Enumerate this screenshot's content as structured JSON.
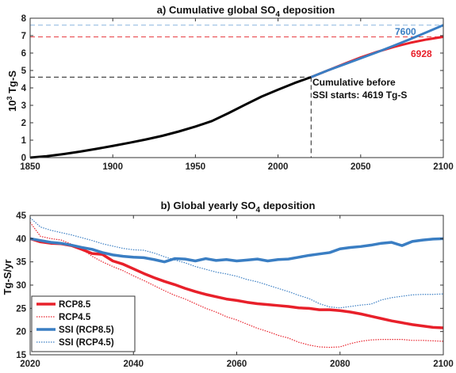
{
  "colors": {
    "black": "#000000",
    "red": "#e8202a",
    "blue": "#3a7ec3",
    "dash_red": "#e8383c",
    "dash_blue": "#8ab6e0",
    "axis": "#333333"
  },
  "chart_data": [
    {
      "type": "line",
      "title_prefix": "a) Cumulative global SO",
      "title_sub": "4",
      "title_suffix": " deposition",
      "ylabel": "10",
      "ylabel_sup": "3",
      "ylabel_suffix": " Tg-S",
      "xlim": [
        1850,
        2100
      ],
      "ylim": [
        0,
        8
      ],
      "x_ticks": [
        1850,
        1900,
        1950,
        2000,
        2050,
        2100
      ],
      "y_ticks": [
        0,
        1,
        2,
        3,
        4,
        5,
        6,
        7,
        8
      ],
      "grid": false,
      "annotation_line1": "Cumulative before",
      "annotation_line2": "SSI starts: 4619 Tg-S",
      "label_blue": "7600",
      "label_red": "6928",
      "reference_lines": [
        {
          "y": 7.6,
          "color": "blue",
          "style": "dashed"
        },
        {
          "y": 6.928,
          "color": "red",
          "style": "dashed"
        },
        {
          "y": 4.619,
          "x_end": 2020,
          "color": "black",
          "style": "dashed"
        }
      ],
      "reference_vline": {
        "x": 2020,
        "y_end": 4.619
      },
      "series": [
        {
          "color": "black",
          "x": [
            1850,
            1860,
            1870,
            1880,
            1890,
            1900,
            1910,
            1920,
            1930,
            1940,
            1950,
            1960,
            1970,
            1980,
            1990,
            2000,
            2010,
            2020
          ],
          "y": [
            0,
            0.08,
            0.2,
            0.34,
            0.5,
            0.67,
            0.85,
            1.04,
            1.25,
            1.5,
            1.78,
            2.1,
            2.55,
            3.03,
            3.5,
            3.9,
            4.28,
            4.619
          ]
        },
        {
          "color": "red",
          "x": [
            2020,
            2030,
            2040,
            2050,
            2060,
            2070,
            2080,
            2090,
            2100
          ],
          "y": [
            4.619,
            5.0,
            5.38,
            5.75,
            6.07,
            6.35,
            6.59,
            6.78,
            6.93
          ]
        },
        {
          "color": "blue",
          "x": [
            2020,
            2030,
            2040,
            2050,
            2060,
            2070,
            2080,
            2090,
            2100
          ],
          "y": [
            4.619,
            5.0,
            5.35,
            5.7,
            6.05,
            6.42,
            6.8,
            7.2,
            7.6
          ]
        }
      ]
    },
    {
      "type": "line",
      "title_prefix": "b) Global yearly SO",
      "title_sub": "4",
      "title_suffix": " deposition",
      "ylabel": "Tg-S/yr",
      "xlim": [
        2020,
        2100
      ],
      "ylim": [
        15,
        45
      ],
      "x_ticks": [
        2020,
        2040,
        2060,
        2080,
        2100
      ],
      "y_ticks": [
        15,
        20,
        25,
        30,
        35,
        40,
        45
      ],
      "grid": false,
      "legend_position": "bottom-left",
      "x": [
        2020,
        2022,
        2024,
        2026,
        2028,
        2030,
        2032,
        2034,
        2036,
        2038,
        2040,
        2042,
        2044,
        2046,
        2048,
        2050,
        2052,
        2054,
        2056,
        2058,
        2060,
        2062,
        2064,
        2066,
        2068,
        2070,
        2072,
        2074,
        2076,
        2078,
        2080,
        2082,
        2084,
        2086,
        2088,
        2090,
        2092,
        2094,
        2096,
        2098,
        2100
      ],
      "series": [
        {
          "name": "RCP8.5",
          "color": "red",
          "style": "solid-thick",
          "values": [
            40.0,
            39.3,
            39.0,
            38.9,
            38.5,
            37.7,
            36.8,
            36.6,
            35.2,
            34.5,
            33.5,
            32.5,
            31.6,
            30.8,
            30.1,
            29.3,
            28.6,
            28.0,
            27.5,
            27.0,
            26.7,
            26.3,
            26.0,
            25.8,
            25.6,
            25.4,
            25.1,
            25.0,
            24.7,
            24.7,
            24.5,
            24.2,
            23.8,
            23.3,
            22.8,
            22.3,
            21.9,
            21.5,
            21.2,
            20.9,
            20.8
          ]
        },
        {
          "name": "RCP4.5",
          "color": "red",
          "style": "dotted",
          "values": [
            43.5,
            40.5,
            40.0,
            39.7,
            38.8,
            37.8,
            36.2,
            35.0,
            34.0,
            33.1,
            32.0,
            31.0,
            29.9,
            28.8,
            27.8,
            27.0,
            26.0,
            25.0,
            24.2,
            23.2,
            22.5,
            21.6,
            20.7,
            20.0,
            19.2,
            18.6,
            17.7,
            17.1,
            16.7,
            16.6,
            16.7,
            17.4,
            17.9,
            18.2,
            18.3,
            18.3,
            18.3,
            18.1,
            18.1,
            18.0,
            17.9
          ]
        },
        {
          "name": "SSI (RCP8.5)",
          "color": "blue",
          "style": "solid-thick",
          "values": [
            40.0,
            39.6,
            39.2,
            39.0,
            38.6,
            38.1,
            37.7,
            37.0,
            36.5,
            36.2,
            36.0,
            35.9,
            35.5,
            35.0,
            35.7,
            35.6,
            35.2,
            35.7,
            35.3,
            35.5,
            35.2,
            35.4,
            35.6,
            35.2,
            35.5,
            35.6,
            36.0,
            36.4,
            36.7,
            37.0,
            37.8,
            38.1,
            38.3,
            38.6,
            39.0,
            39.2,
            38.5,
            39.4,
            39.7,
            39.9,
            40.0
          ]
        },
        {
          "name": "SSI (RCP4.5)",
          "color": "blue",
          "style": "dotted",
          "values": [
            44.5,
            42.5,
            41.8,
            41.3,
            40.8,
            40.2,
            39.6,
            38.9,
            38.4,
            37.9,
            37.6,
            37.5,
            36.9,
            36.1,
            35.4,
            34.8,
            34.0,
            33.4,
            32.8,
            32.4,
            31.9,
            31.2,
            30.7,
            30.0,
            29.3,
            28.6,
            27.8,
            27.1,
            26.0,
            25.3,
            25.1,
            25.4,
            25.7,
            25.9,
            26.8,
            27.3,
            27.6,
            27.9,
            28.0,
            28.0,
            28.1
          ]
        }
      ]
    }
  ]
}
